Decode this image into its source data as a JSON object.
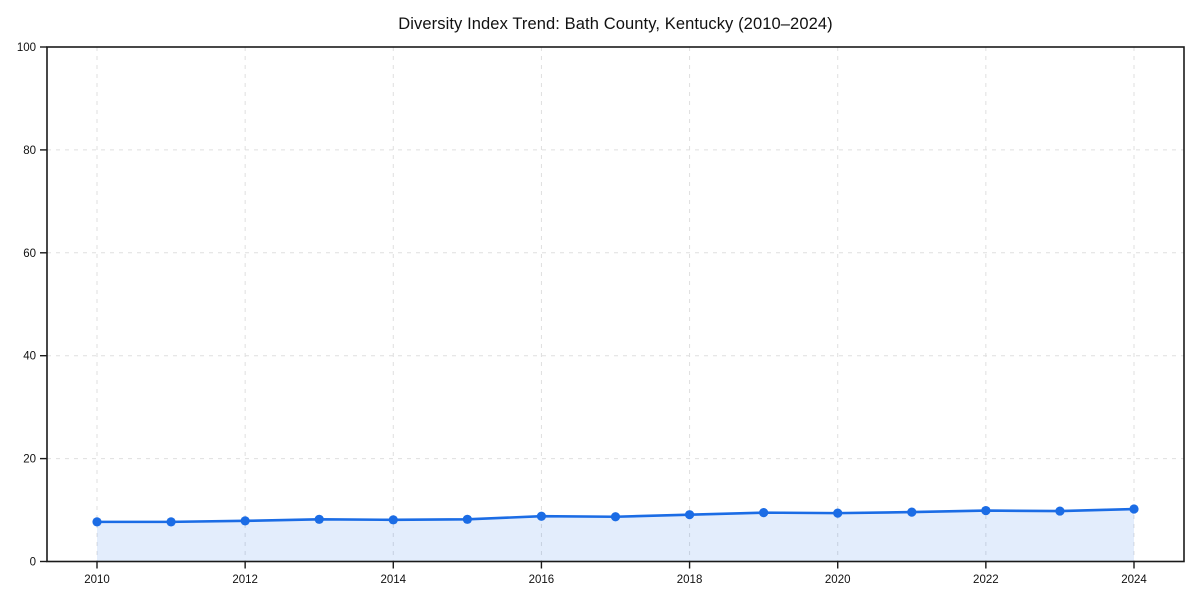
{
  "title": "Diversity Index Trend: Bath County, Kentucky (2010–2024)",
  "colors": {
    "line": "#1b6ce5",
    "marker": "#1b6ce5",
    "area_fill": "rgba(27,108,229,0.12)",
    "grid": "#dfdfdf",
    "axis": "#1a1a1a",
    "text": "#111111",
    "background": "#ffffff"
  },
  "chart_data": {
    "type": "area",
    "title": "Diversity Index Trend: Bath County, Kentucky (2010–2024)",
    "x": [
      2010,
      2011,
      2012,
      2013,
      2014,
      2015,
      2016,
      2017,
      2018,
      2019,
      2020,
      2021,
      2022,
      2023,
      2024
    ],
    "series": [
      {
        "name": "Diversity Index",
        "values": [
          7.7,
          7.7,
          7.9,
          8.2,
          8.1,
          8.2,
          8.8,
          8.7,
          9.1,
          9.5,
          9.4,
          9.6,
          9.9,
          9.8,
          10.2
        ]
      }
    ],
    "xlabel": "",
    "ylabel": "",
    "ylim": [
      0,
      100
    ],
    "yticks": [
      0,
      20,
      40,
      60,
      80,
      100
    ],
    "xticks": [
      2010,
      2012,
      2014,
      2016,
      2018,
      2020,
      2022,
      2024
    ],
    "grid": true,
    "grid_style": "dashed",
    "legend": "none",
    "markers": true
  }
}
